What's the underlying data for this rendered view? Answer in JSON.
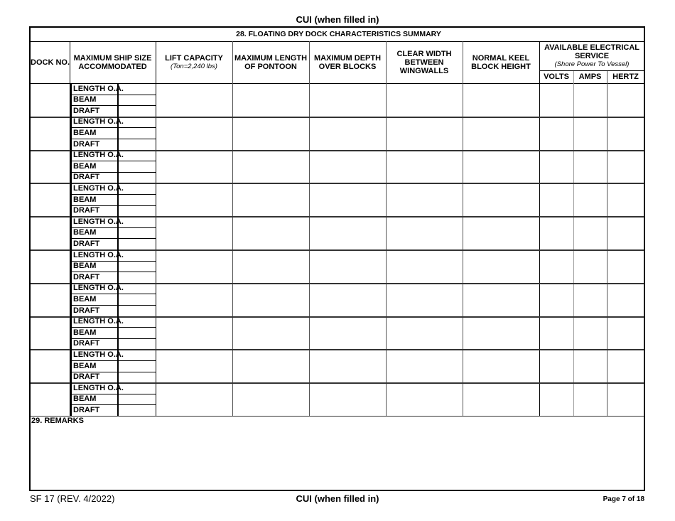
{
  "header_cui": "CUI (when filled in)",
  "section_28": {
    "title": "28.  FLOATING DRY DOCK CHARACTERISTICS SUMMARY",
    "columns": {
      "dock_no": "DOCK NO.",
      "max_ship_size": "MAXIMUM SHIP SIZE ACCOMMODATED",
      "lift_capacity": "LIFT CAPACITY",
      "lift_capacity_note": "(Ton=2,240 lbs)",
      "max_length_pontoon": "MAXIMUM LENGTH OF PONTOON",
      "max_depth_blocks": "MAXIMUM DEPTH OVER BLOCKS",
      "clear_width": "CLEAR WIDTH BETWEEN WINGWALLS",
      "keel_block_height": "NORMAL KEEL BLOCK HEIGHT",
      "electrical": "AVAILABLE ELECTRICAL SERVICE",
      "electrical_note": "(Shore Power To Vessel)",
      "volts": "VOLTS",
      "amps": "AMPS",
      "hertz": "HERTZ"
    },
    "row_labels": [
      "LENGTH O.A.",
      "BEAM",
      "DRAFT"
    ],
    "row_count": 10
  },
  "section_29": {
    "title": "29.  REMARKS"
  },
  "footer": {
    "form_id": "SF 17 (REV. 4/2022)",
    "cui": "CUI (when filled in)",
    "page": "Page 7 of 18"
  }
}
